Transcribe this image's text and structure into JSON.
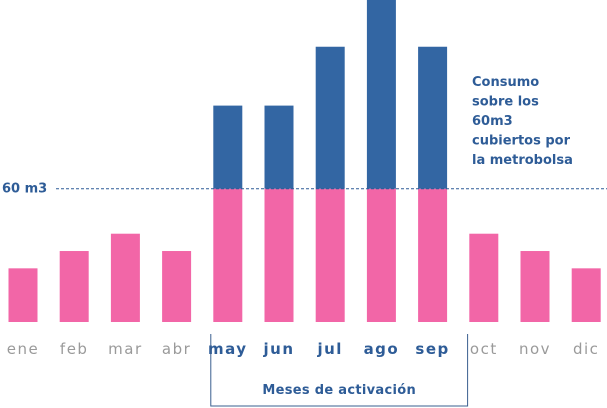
{
  "chart_data": {
    "type": "bar",
    "stacked": true,
    "categories": [
      "ene",
      "feb",
      "mar",
      "abr",
      "may",
      "jun",
      "jul",
      "ago",
      "sep",
      "oct",
      "nov",
      "dic"
    ],
    "highlighted_categories": [
      "may",
      "jun",
      "jul",
      "ago",
      "sep"
    ],
    "series": [
      {
        "values": [
          31,
          41,
          51,
          41,
          77,
          77,
          77,
          77,
          77,
          51,
          41,
          31
        ]
      },
      {
        "name": "Consumo sobre los 60m3 cubiertos por la metrobolsa",
        "values": [
          0,
          0,
          0,
          0,
          48,
          48,
          82,
          109,
          82,
          0,
          0,
          0
        ]
      }
    ],
    "reference_line": {
      "label": "60 m3",
      "value": 77
    },
    "annotation_lines": [
      "Consumo",
      "sobre los",
      "60m3",
      "cubiertos por",
      "la metrobolsa"
    ],
    "bracket_label": "Meses de activación",
    "ylim": [
      0,
      186
    ],
    "grid": false,
    "axes_visible": false,
    "colors": {
      "base": "#F266A7",
      "excess": "#3366A3",
      "text_highlight": "#2E5C97",
      "text_muted": "#9A9A9A",
      "reference_line": "#2E5C97",
      "bracket": "#3A5F8F"
    }
  }
}
